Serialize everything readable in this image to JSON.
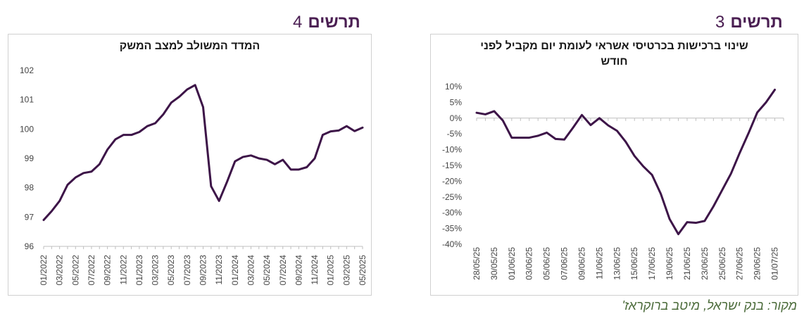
{
  "header_left": {
    "label": "תרשים",
    "number": "4"
  },
  "header_right": {
    "label": "תרשים",
    "number": "3"
  },
  "source": "מקור: בנק ישראל, מיטב ברוקראז'",
  "chart_data": [
    {
      "type": "line",
      "title": "המדד המשולב למצב המשק",
      "color": "#3d1548",
      "ylim": [
        96,
        102
      ],
      "yticks": [
        96,
        97,
        98,
        99,
        100,
        101,
        102
      ],
      "tick_labels": [
        "01/2022",
        "03/2022",
        "05/2022",
        "07/2022",
        "09/2022",
        "11/2022",
        "01/2023",
        "03/2023",
        "05/2023",
        "07/2023",
        "09/2023",
        "11/2023",
        "01/2024",
        "03/2024",
        "05/2024",
        "07/2024",
        "09/2024",
        "11/2024",
        "01/2025",
        "03/2025",
        "05/2025"
      ],
      "x": [
        "01/2022",
        "02/2022",
        "03/2022",
        "04/2022",
        "05/2022",
        "06/2022",
        "07/2022",
        "08/2022",
        "09/2022",
        "10/2022",
        "11/2022",
        "12/2022",
        "01/2023",
        "02/2023",
        "03/2023",
        "04/2023",
        "05/2023",
        "06/2023",
        "07/2023",
        "08/2023",
        "09/2023",
        "10/2023",
        "11/2023",
        "12/2023",
        "01/2024",
        "02/2024",
        "03/2024",
        "04/2024",
        "05/2024",
        "06/2024",
        "07/2024",
        "08/2024",
        "09/2024",
        "10/2024",
        "11/2024",
        "12/2024",
        "01/2025",
        "02/2025",
        "03/2025",
        "04/2025",
        "05/2025"
      ],
      "values": [
        96.9,
        97.2,
        97.55,
        98.1,
        98.35,
        98.5,
        98.55,
        98.8,
        99.3,
        99.65,
        99.8,
        99.8,
        99.9,
        100.1,
        100.2,
        100.5,
        100.9,
        101.1,
        101.35,
        101.5,
        100.75,
        98.05,
        97.55,
        98.2,
        98.9,
        99.05,
        99.1,
        99.0,
        98.95,
        98.8,
        98.95,
        98.62,
        98.62,
        98.7,
        99.0,
        99.8,
        99.92,
        99.95,
        100.1,
        99.93,
        100.05
      ]
    },
    {
      "type": "line",
      "title": "שינוי ברכישות בכרטיסי אשראי לעומת יום מקביל לפני חודש",
      "color": "#3d1548",
      "ylim": [
        -40,
        10
      ],
      "yticks": [
        10,
        5,
        0,
        -5,
        -10,
        -15,
        -20,
        -25,
        -30,
        -35,
        -40
      ],
      "ytick_labels": [
        "10%",
        "5%",
        "0%",
        "-5%",
        "-10%",
        "-15%",
        "-20%",
        "-25%",
        "-30%",
        "-35%",
        "-40%"
      ],
      "tick_labels": [
        "28/05/25",
        "30/05/25",
        "01/06/25",
        "03/06/25",
        "05/06/25",
        "07/06/25",
        "09/06/25",
        "11/06/25",
        "13/06/25",
        "15/06/25",
        "17/06/25",
        "19/06/25",
        "21/06/25",
        "23/06/25",
        "25/06/25",
        "27/06/25",
        "29/06/25",
        "01/07/25"
      ],
      "x": [
        "28/05/25",
        "29/05/25",
        "30/05/25",
        "31/05/25",
        "01/06/25",
        "02/06/25",
        "03/06/25",
        "04/06/25",
        "05/06/25",
        "06/06/25",
        "07/06/25",
        "08/06/25",
        "09/06/25",
        "10/06/25",
        "11/06/25",
        "12/06/25",
        "13/06/25",
        "14/06/25",
        "15/06/25",
        "16/06/25",
        "17/06/25",
        "18/06/25",
        "19/06/25",
        "20/06/25",
        "21/06/25",
        "22/06/25",
        "23/06/25",
        "24/06/25",
        "25/06/25",
        "26/06/25",
        "27/06/25",
        "28/06/25",
        "29/06/25",
        "30/06/25",
        "01/07/25",
        "02/07/25"
      ],
      "values": [
        1.7,
        1.2,
        2.2,
        -0.8,
        -6.2,
        -6.2,
        -6.2,
        -5.6,
        -4.6,
        -6.6,
        -6.8,
        -3.0,
        1.0,
        -2.2,
        0.0,
        -2.3,
        -4.0,
        -7.5,
        -12.0,
        -15.3,
        -18.0,
        -24.0,
        -32.0,
        -36.8,
        -33.0,
        -33.2,
        -32.6,
        -28.0,
        -22.8,
        -17.6,
        -11.0,
        -4.8,
        1.8,
        5.0,
        9.0,
        null
      ]
    }
  ]
}
